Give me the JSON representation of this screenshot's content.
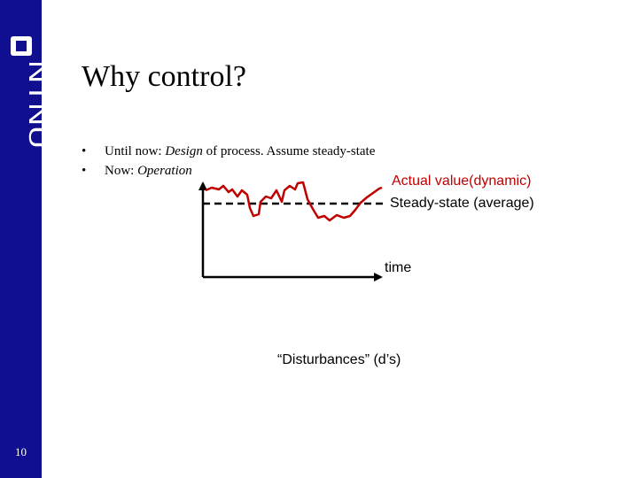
{
  "sidebar": {
    "logo_text": "NTNU",
    "page_number": "10",
    "color": "#0f0f8f"
  },
  "slide": {
    "title": "Why control?",
    "bullets": [
      {
        "marker": "•",
        "parts": [
          {
            "text": "Until now: ",
            "italic": false
          },
          {
            "text": "Design",
            "italic": true
          },
          {
            "text": " of process. Assume steady-state",
            "italic": false
          }
        ]
      },
      {
        "marker": "•",
        "parts": [
          {
            "text": "Now: ",
            "italic": false
          },
          {
            "text": "Operation",
            "italic": true
          }
        ]
      }
    ]
  },
  "diagram": {
    "actual_label": "Actual value(dynamic)",
    "steady_label": "Steady-state (average)",
    "time_label": "time",
    "disturbances_label": "“Disturbances” (d’s)",
    "actual_color": "#c00000",
    "steady_color": "#000000"
  }
}
